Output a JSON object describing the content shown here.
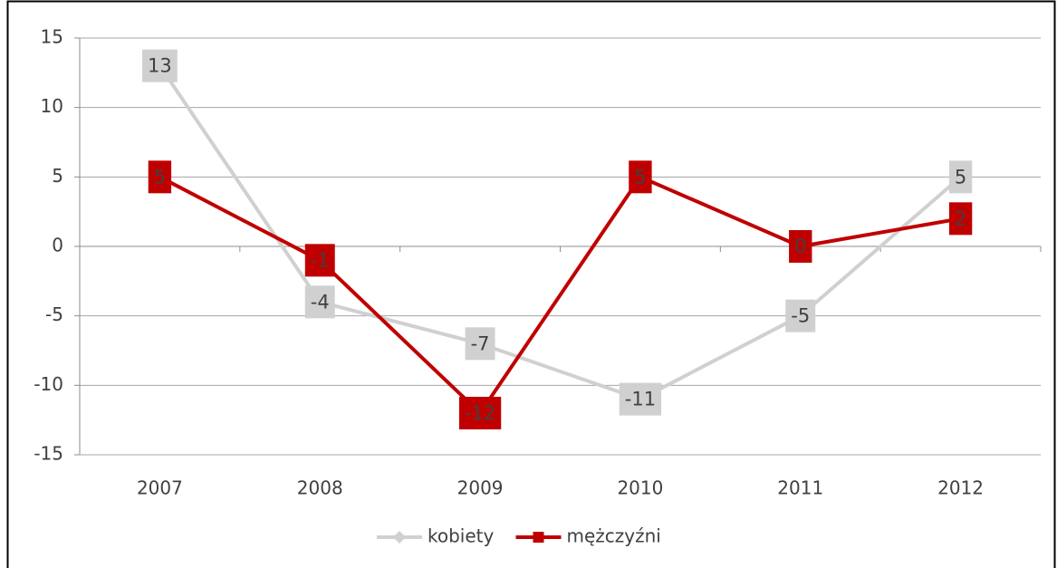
{
  "chart_data": {
    "type": "line",
    "categories": [
      "2007",
      "2008",
      "2009",
      "2010",
      "2011",
      "2012"
    ],
    "series": [
      {
        "name": "kobiety",
        "color": "#d0d0d0",
        "marker": "diamond",
        "values": [
          13,
          -4,
          -7,
          -11,
          -5,
          5
        ]
      },
      {
        "name": "mężczyźni",
        "color": "#c00000",
        "marker": "square",
        "values": [
          5,
          -1,
          -12,
          5,
          0,
          2
        ]
      }
    ],
    "ylim": [
      -15,
      15
    ],
    "yticks": [
      -15,
      -10,
      -5,
      0,
      5,
      10,
      15
    ],
    "grid": true,
    "legend": "bottom"
  }
}
